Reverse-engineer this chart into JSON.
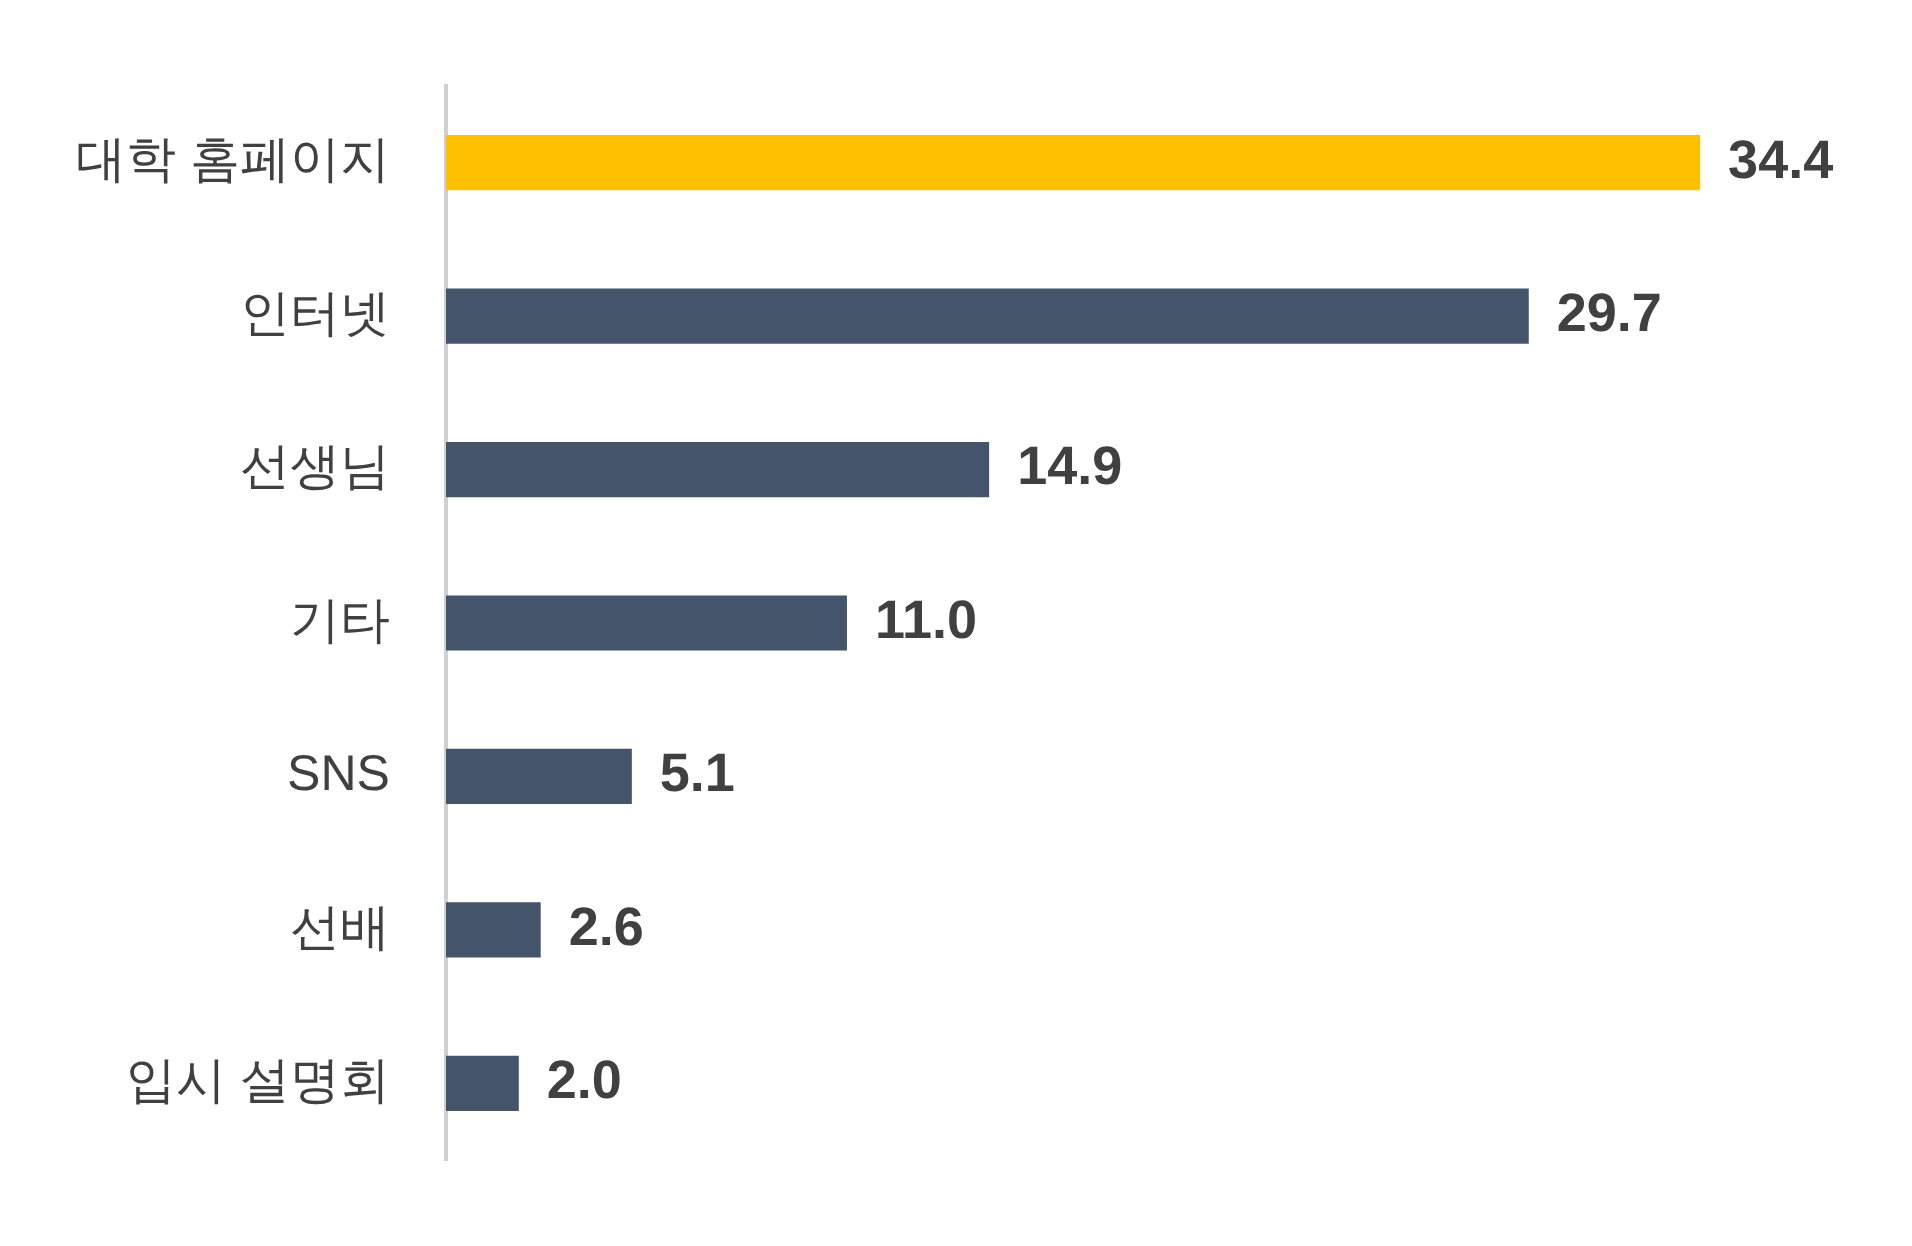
{
  "chart_data": {
    "type": "bar",
    "orientation": "horizontal",
    "categories": [
      "대학 홈페이지",
      "인터넷",
      "선생님",
      "기타",
      "SNS",
      "선배",
      "입시 설명회"
    ],
    "values": [
      34.4,
      29.7,
      14.9,
      11.0,
      5.1,
      2.6,
      2.0
    ],
    "value_labels": [
      "34.4",
      "29.7",
      "14.9",
      "11.0",
      "5.1",
      "2.6",
      "2.0"
    ],
    "colors": [
      "#ffc000",
      "#44546a",
      "#44546a",
      "#44546a",
      "#44546a",
      "#44546a",
      "#44546a"
    ],
    "tick_labels": "y",
    "grid": false,
    "legend": false
  }
}
